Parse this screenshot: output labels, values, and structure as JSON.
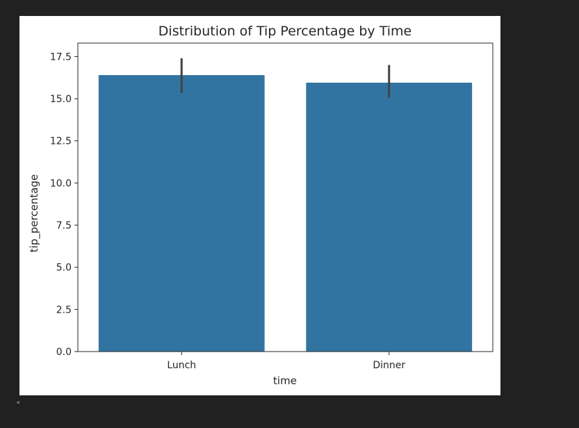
{
  "chart_data": {
    "type": "bar",
    "title": "Distribution of Tip Percentage by Time",
    "xlabel": "time",
    "ylabel": "tip_percentage",
    "categories": [
      "Lunch",
      "Dinner"
    ],
    "values": [
      16.4,
      15.95
    ],
    "error_bars": [
      {
        "low": 15.35,
        "high": 17.4
      },
      {
        "low": 15.05,
        "high": 17.0
      }
    ],
    "ylim": [
      0,
      18.3
    ],
    "yticks": [
      0.0,
      2.5,
      5.0,
      7.5,
      10.0,
      12.5,
      15.0,
      17.5
    ],
    "ytick_labels": [
      "0.0",
      "2.5",
      "5.0",
      "7.5",
      "10.0",
      "12.5",
      "15.0",
      "17.5"
    ],
    "bar_color": "#3274a1",
    "errorbar_color": "#424242",
    "grid": false,
    "legend": "none"
  },
  "ui": {
    "scroll_arrow_icon": "chevron-left-icon",
    "scroll_arrow_glyph": "◂"
  }
}
